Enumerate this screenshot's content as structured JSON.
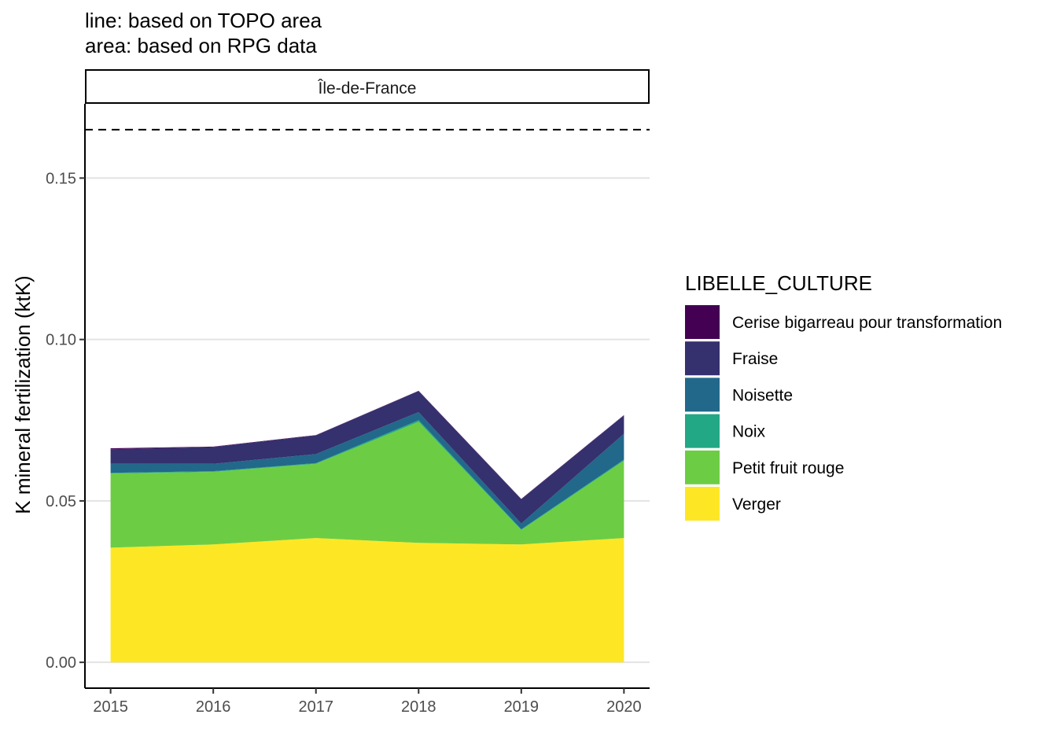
{
  "chart_data": {
    "type": "area",
    "title": "line: based on TOPO area",
    "subtitle": "area: based on RPG data",
    "facet_label": "Île-de-France",
    "xlabel": "",
    "ylabel": "K mineral fertilization (ktK)",
    "x": [
      2015,
      2016,
      2017,
      2018,
      2019,
      2020
    ],
    "x_tick_labels": [
      "2015",
      "2016",
      "2017",
      "2018",
      "2019",
      "2020"
    ],
    "y_ticks": [
      0,
      0.05,
      0.1,
      0.15
    ],
    "y_tick_labels": [
      "0.00",
      "0.05",
      "0.10",
      "0.15"
    ],
    "ylim": [
      -0.008,
      0.173
    ],
    "xlim": [
      2014.75,
      2020.25
    ],
    "stacked": true,
    "grid": "horizontal major",
    "legend_title": "LIBELLE_CULTURE",
    "legend_position": "right",
    "reference_line": {
      "style": "dashed",
      "color": "#000000",
      "value": 0.165
    },
    "series": [
      {
        "name": "Verger",
        "color": "#FDE725",
        "values": [
          0.0355,
          0.0365,
          0.0385,
          0.037,
          0.0365,
          0.0385
        ]
      },
      {
        "name": "Petit fruit rouge",
        "color": "#6CCD44",
        "values": [
          0.023,
          0.0225,
          0.023,
          0.0375,
          0.0045,
          0.024
        ]
      },
      {
        "name": "Noix",
        "color": "#22A884",
        "values": [
          0.0002,
          0.0002,
          0.0002,
          0.0005,
          0.0002,
          0.0003
        ]
      },
      {
        "name": "Noisette",
        "color": "#22688A",
        "values": [
          0.0028,
          0.0023,
          0.0028,
          0.0025,
          0.0018,
          0.008
        ]
      },
      {
        "name": "Fraise",
        "color": "#35306E",
        "values": [
          0.0045,
          0.0052,
          0.0058,
          0.0065,
          0.0075,
          0.0057
        ]
      },
      {
        "name": "Cerise bigarreau pour transformation",
        "color": "#440154",
        "values": [
          0.0003,
          0.0001,
          0.0001,
          0.0001,
          0.0001,
          0.0001
        ]
      }
    ],
    "legend_order": [
      "Cerise bigarreau pour transformation",
      "Fraise",
      "Noisette",
      "Noix",
      "Petit fruit rouge",
      "Verger"
    ]
  }
}
